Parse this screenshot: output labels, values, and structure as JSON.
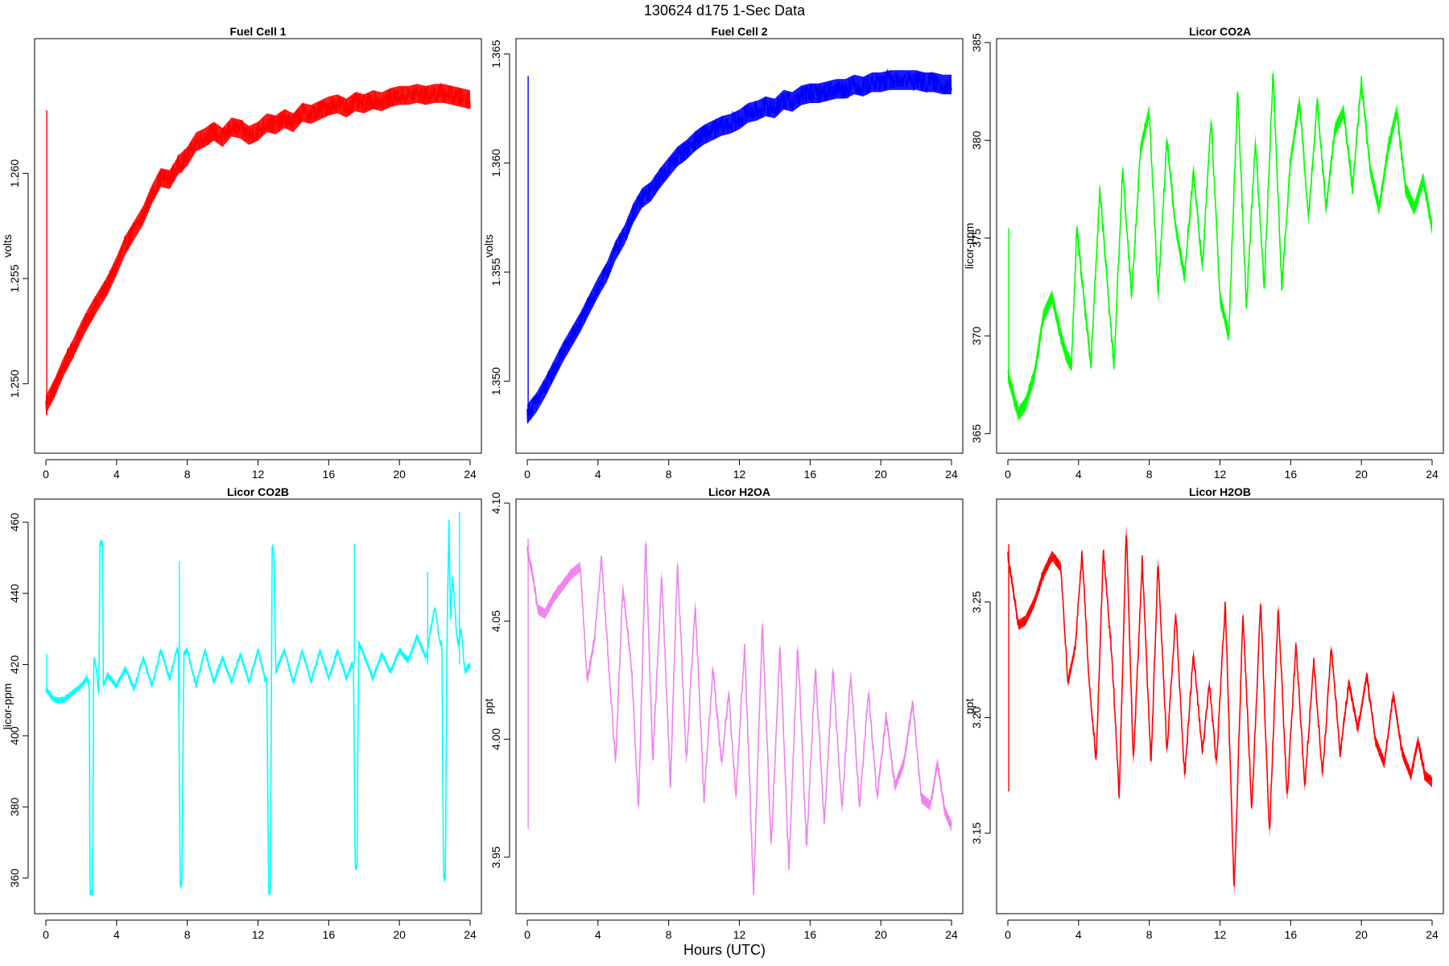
{
  "figure": {
    "title": "130624   d175   1-Sec Data",
    "xlabel": "Hours (UTC)"
  },
  "chart_data": [
    {
      "type": "line",
      "title": "Fuel Cell 1",
      "xlabel": "Hours (UTC)",
      "ylabel": "volts",
      "color": "#ff0000",
      "xlim": [
        0,
        24
      ],
      "ylim": [
        1.2467,
        1.2664
      ],
      "xticks": [
        0,
        4,
        8,
        12,
        16,
        20,
        24
      ],
      "xtick_labels": [
        "0",
        "4",
        "8",
        "12",
        "16",
        "20",
        "24"
      ],
      "yticks": [
        1.25,
        1.255,
        1.26
      ],
      "ytick_labels": [
        "1.250",
        "1.255",
        "1.260"
      ],
      "noise": 0.00045,
      "x": [
        0,
        0.5,
        1,
        1.5,
        2,
        2.5,
        3,
        3.5,
        4,
        4.5,
        5,
        5.5,
        6,
        6.5,
        7,
        7.5,
        8,
        8.5,
        9,
        9.5,
        10,
        10.5,
        11,
        11.5,
        12,
        12.5,
        13,
        13.5,
        14,
        14.5,
        15,
        15.5,
        16,
        16.5,
        17,
        17.5,
        18,
        18.5,
        19,
        19.5,
        20,
        20.5,
        21,
        21.5,
        22,
        22.5,
        23,
        23.5,
        24
      ],
      "y": [
        1.249,
        1.2498,
        1.2508,
        1.2516,
        1.2525,
        1.2533,
        1.254,
        1.2547,
        1.2556,
        1.2566,
        1.2573,
        1.258,
        1.259,
        1.2598,
        1.2597,
        1.2604,
        1.2608,
        1.2615,
        1.2617,
        1.262,
        1.2617,
        1.2622,
        1.2621,
        1.2618,
        1.262,
        1.2624,
        1.2623,
        1.2626,
        1.2624,
        1.2629,
        1.2628,
        1.263,
        1.2632,
        1.2633,
        1.2631,
        1.2634,
        1.2633,
        1.2635,
        1.2634,
        1.2636,
        1.2637,
        1.2637,
        1.2638,
        1.2637,
        1.2638,
        1.2638,
        1.2637,
        1.2636,
        1.2635
      ],
      "spikes": [
        {
          "x": 0.05,
          "y0": 1.2485,
          "y1": 1.263
        }
      ]
    },
    {
      "type": "line",
      "title": "Fuel Cell 2",
      "xlabel": "Hours (UTC)",
      "ylabel": "volts",
      "color": "#0000ff",
      "xlim": [
        0,
        24
      ],
      "ylim": [
        1.3467,
        1.3657
      ],
      "xticks": [
        0,
        4,
        8,
        12,
        16,
        20,
        24
      ],
      "xtick_labels": [
        "0",
        "4",
        "8",
        "12",
        "16",
        "20",
        "24"
      ],
      "yticks": [
        1.35,
        1.355,
        1.36,
        1.365
      ],
      "ytick_labels": [
        "1.350",
        "1.355",
        "1.360",
        "1.365"
      ],
      "noise": 0.00045,
      "x": [
        0,
        0.5,
        1,
        1.5,
        2,
        2.5,
        3,
        3.5,
        4,
        4.5,
        5,
        5.5,
        6,
        6.5,
        7,
        7.5,
        8,
        8.5,
        9,
        9.5,
        10,
        10.5,
        11,
        11.5,
        12,
        12.5,
        13,
        13.5,
        14,
        14.5,
        15,
        15.5,
        16,
        16.5,
        17,
        17.5,
        18,
        18.5,
        19,
        19.5,
        20,
        20.5,
        21,
        21.5,
        22,
        22.5,
        23,
        23.5,
        24
      ],
      "y": [
        1.3485,
        1.349,
        1.3497,
        1.3505,
        1.3513,
        1.352,
        1.3527,
        1.3535,
        1.3543,
        1.355,
        1.356,
        1.3567,
        1.3577,
        1.3584,
        1.3587,
        1.3593,
        1.3598,
        1.3603,
        1.3606,
        1.361,
        1.3613,
        1.3615,
        1.3617,
        1.3618,
        1.362,
        1.3623,
        1.3624,
        1.3626,
        1.3625,
        1.3629,
        1.3628,
        1.3631,
        1.3632,
        1.3632,
        1.3633,
        1.3634,
        1.3634,
        1.3636,
        1.3635,
        1.3637,
        1.3637,
        1.3638,
        1.3638,
        1.3638,
        1.3638,
        1.3637,
        1.3637,
        1.3636,
        1.3636
      ],
      "spikes": [
        {
          "x": 0.05,
          "y0": 1.349,
          "y1": 1.364
        }
      ]
    },
    {
      "type": "line",
      "title": "Licor CO2A",
      "xlabel": "Hours (UTC)",
      "ylabel": "licor-ppm",
      "color": "#00ff00",
      "xlim": [
        0,
        24
      ],
      "ylim": [
        364.0,
        385.2
      ],
      "xticks": [
        0,
        4,
        8,
        12,
        16,
        20,
        24
      ],
      "xtick_labels": [
        "0",
        "4",
        "8",
        "12",
        "16",
        "20",
        "24"
      ],
      "yticks": [
        365,
        370,
        375,
        380,
        385
      ],
      "ytick_labels": [
        "365",
        "370",
        "375",
        "380",
        "385"
      ],
      "noise": 0.35,
      "x": [
        0,
        0.3,
        0.6,
        1.0,
        1.5,
        2.0,
        2.5,
        3.0,
        3.3,
        3.6,
        3.9,
        4.3,
        4.7,
        5.2,
        5.6,
        6.0,
        6.5,
        7.0,
        7.5,
        8.0,
        8.5,
        9.0,
        9.5,
        10.0,
        10.5,
        11.0,
        11.5,
        12.0,
        12.5,
        13.0,
        13.5,
        14.0,
        14.5,
        15.0,
        15.5,
        16.0,
        16.5,
        17.0,
        17.5,
        18.0,
        18.5,
        19.0,
        19.5,
        20.0,
        20.5,
        21.0,
        21.5,
        22.0,
        22.5,
        23.0,
        23.5,
        24.0
      ],
      "y": [
        368,
        367,
        366,
        366.5,
        368,
        371,
        372,
        370,
        369,
        368.5,
        375.5,
        372,
        368.5,
        377.5,
        373,
        368.5,
        378.5,
        372,
        379.5,
        381.5,
        372,
        380,
        375.5,
        373,
        378.5,
        373.5,
        381,
        372,
        370,
        382.5,
        371.5,
        380,
        372.5,
        383.5,
        372.5,
        379,
        382,
        376,
        382,
        376.5,
        380.5,
        381.5,
        377.5,
        383,
        378.5,
        376.5,
        379.5,
        381.5,
        377.5,
        376.5,
        378,
        375.5
      ],
      "spikes": [
        {
          "x": 0.05,
          "y0": 368,
          "y1": 375.5
        }
      ]
    },
    {
      "type": "line",
      "title": "Licor CO2B",
      "xlabel": "Hours (UTC)",
      "ylabel": "licor-ppm",
      "color": "#00ffff",
      "xlim": [
        0,
        24
      ],
      "ylim": [
        350.0,
        466.5
      ],
      "xticks": [
        0,
        4,
        8,
        12,
        16,
        20,
        24
      ],
      "xtick_labels": [
        "0",
        "4",
        "8",
        "12",
        "16",
        "20",
        "24"
      ],
      "yticks": [
        360,
        380,
        400,
        420,
        440,
        460
      ],
      "ytick_labels": [
        "360",
        "380",
        "400",
        "420",
        "440",
        "460"
      ],
      "noise": 0.8,
      "x": [
        0,
        0.5,
        1.0,
        1.5,
        2.0,
        2.3,
        2.45,
        2.5,
        2.65,
        2.7,
        2.8,
        3.0,
        3.05,
        3.2,
        3.25,
        3.5,
        4.0,
        4.5,
        5.0,
        5.5,
        6.0,
        6.5,
        7.0,
        7.4,
        7.5,
        7.6,
        7.7,
        7.8,
        8.0,
        8.5,
        9.0,
        9.5,
        10.0,
        10.5,
        11.0,
        11.5,
        12.0,
        12.4,
        12.5,
        12.6,
        12.7,
        12.8,
        12.9,
        13.0,
        13.5,
        14.0,
        14.5,
        15.0,
        15.5,
        16.0,
        16.5,
        17.0,
        17.3,
        17.4,
        17.5,
        17.6,
        17.7,
        17.9,
        18.5,
        19.0,
        19.5,
        20.0,
        20.5,
        21.0,
        21.5,
        22.0,
        22.3,
        22.4,
        22.5,
        22.6,
        22.7,
        22.8,
        22.9,
        23.0,
        23.3,
        23.5,
        23.7,
        24.0
      ],
      "y": [
        413,
        410,
        410,
        412,
        414,
        416,
        415,
        356,
        356,
        421,
        421,
        411,
        454,
        454,
        414,
        417,
        414,
        419,
        413,
        422,
        414,
        424,
        416,
        424,
        424,
        358,
        358,
        423,
        424,
        414,
        424,
        415,
        422,
        415,
        423,
        415,
        424,
        416,
        416,
        356,
        356,
        453,
        453,
        418,
        424,
        415,
        424,
        415,
        424,
        416,
        424,
        416,
        420,
        420,
        363,
        363,
        426,
        424,
        416,
        423,
        418,
        424,
        421,
        428,
        422,
        436,
        426,
        426,
        360,
        360,
        430,
        460,
        432,
        445,
        425,
        430,
        418,
        420
      ],
      "spikes": [
        {
          "x": 0.05,
          "y0": 413,
          "y1": 423
        },
        {
          "x": 7.55,
          "y0": 410,
          "y1": 449
        },
        {
          "x": 17.45,
          "y0": 420,
          "y1": 454
        },
        {
          "x": 23.4,
          "y0": 420,
          "y1": 463
        },
        {
          "x": 21.6,
          "y0": 420,
          "y1": 446
        }
      ]
    },
    {
      "type": "line",
      "title": "Licor H2OA",
      "xlabel": "Hours (UTC)",
      "ylabel": "ppt",
      "color": "#ee82ee",
      "xlim": [
        0,
        24
      ],
      "ylim": [
        3.9261,
        4.1017
      ],
      "xticks": [
        0,
        4,
        8,
        12,
        16,
        20,
        24
      ],
      "xtick_labels": [
        "0",
        "4",
        "8",
        "12",
        "16",
        "20",
        "24"
      ],
      "yticks": [
        3.95,
        4.0,
        4.05,
        4.1
      ],
      "ytick_labels": [
        "3.95",
        "4.00",
        "4.05",
        "4.10"
      ],
      "noise": 0.0022,
      "x": [
        0,
        0.3,
        0.6,
        1.0,
        1.5,
        2.0,
        2.5,
        3.0,
        3.4,
        3.8,
        4.2,
        4.6,
        5.0,
        5.4,
        5.9,
        6.3,
        6.7,
        7.1,
        7.6,
        8.1,
        8.5,
        9.0,
        9.5,
        10.0,
        10.5,
        11.0,
        11.4,
        11.8,
        12.3,
        12.8,
        13.3,
        13.8,
        14.3,
        14.8,
        15.3,
        15.8,
        16.3,
        16.8,
        17.3,
        17.8,
        18.3,
        18.8,
        19.3,
        19.8,
        20.3,
        20.8,
        21.3,
        21.8,
        22.3,
        22.8,
        23.2,
        23.6,
        24.0
      ],
      "y": [
        4.08,
        4.07,
        4.055,
        4.053,
        4.06,
        4.065,
        4.07,
        4.073,
        4.025,
        4.042,
        4.077,
        4.032,
        3.99,
        4.065,
        4.03,
        3.97,
        4.085,
        3.99,
        4.07,
        3.98,
        4.075,
        3.99,
        4.058,
        3.975,
        4.03,
        3.99,
        4.02,
        3.975,
        4.04,
        3.935,
        4.05,
        3.955,
        4.04,
        3.945,
        4.04,
        3.955,
        4.03,
        3.965,
        4.03,
        3.97,
        4.028,
        3.972,
        4.02,
        3.975,
        4.01,
        3.98,
        3.99,
        4.015,
        3.975,
        3.972,
        3.99,
        3.97,
        3.963
      ],
      "spikes": [
        {
          "x": 0.05,
          "y0": 3.962,
          "y1": 4.085
        }
      ]
    },
    {
      "type": "line",
      "title": "Licor H2OB",
      "xlabel": "Hours (UTC)",
      "ylabel": "ppt",
      "color": "#ff0000",
      "xlim": [
        0,
        24
      ],
      "ylim": [
        3.1152,
        3.2945
      ],
      "xticks": [
        0,
        4,
        8,
        12,
        16,
        20,
        24
      ],
      "xtick_labels": [
        "0",
        "4",
        "8",
        "12",
        "16",
        "20",
        "24"
      ],
      "yticks": [
        3.15,
        3.2,
        3.25
      ],
      "ytick_labels": [
        "3.15",
        "3.20",
        "3.25"
      ],
      "noise": 0.0022,
      "x": [
        0,
        0.3,
        0.6,
        1.0,
        1.5,
        2.0,
        2.5,
        3.0,
        3.4,
        3.8,
        4.2,
        4.6,
        5.0,
        5.4,
        5.9,
        6.3,
        6.7,
        7.1,
        7.6,
        8.1,
        8.5,
        9.0,
        9.5,
        10.0,
        10.5,
        11.0,
        11.4,
        11.8,
        12.3,
        12.8,
        13.3,
        13.8,
        14.3,
        14.8,
        15.3,
        15.8,
        16.3,
        16.8,
        17.3,
        17.8,
        18.3,
        18.8,
        19.3,
        19.8,
        20.3,
        20.8,
        21.3,
        21.8,
        22.3,
        22.8,
        23.2,
        23.6,
        24.0
      ],
      "y": [
        3.27,
        3.255,
        3.24,
        3.242,
        3.25,
        3.262,
        3.27,
        3.265,
        3.215,
        3.23,
        3.272,
        3.215,
        3.182,
        3.272,
        3.225,
        3.165,
        3.283,
        3.18,
        3.268,
        3.18,
        3.268,
        3.185,
        3.245,
        3.175,
        3.228,
        3.185,
        3.215,
        3.18,
        3.25,
        3.125,
        3.245,
        3.16,
        3.25,
        3.15,
        3.248,
        3.165,
        3.232,
        3.17,
        3.225,
        3.175,
        3.23,
        3.185,
        3.215,
        3.195,
        3.218,
        3.19,
        3.18,
        3.21,
        3.185,
        3.175,
        3.19,
        3.175,
        3.172
      ],
      "spikes": [
        {
          "x": 0.05,
          "y0": 3.168,
          "y1": 3.275
        }
      ]
    }
  ]
}
